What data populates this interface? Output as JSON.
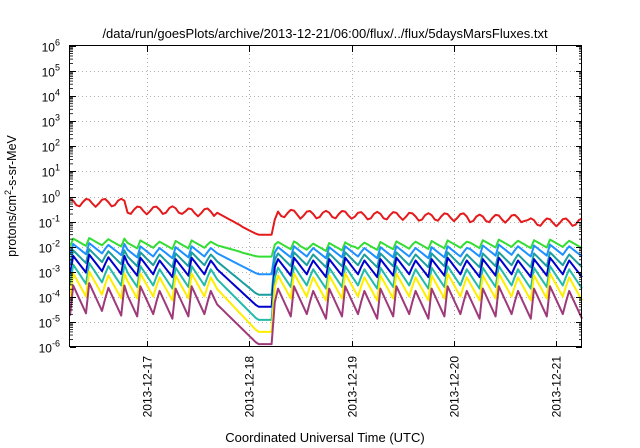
{
  "chart_data": {
    "type": "line",
    "title": "/data/run/goesPlots/archive/2013-12-21/06:00/flux/../flux/5daysMarsFluxes.txt",
    "xlabel": "Coordinated Universal Time (UTC)",
    "ylabel_parts": [
      "protons/cm",
      "2",
      "-s-sr-MeV"
    ],
    "x_ticks": [
      "2013-12-17",
      "2013-12-18",
      "2013-12-19",
      "2013-12-20",
      "2013-12-21"
    ],
    "xlim": [
      "2013-12-16 06:00",
      "2013-12-21 06:00"
    ],
    "y_scale": "log",
    "ylim": [
      1e-06,
      1000000.0
    ],
    "y_tick_exponents": [
      -6,
      -5,
      -4,
      -3,
      -2,
      -1,
      0,
      1,
      2,
      3,
      4,
      5,
      6
    ],
    "y_tick_base": "10",
    "grid": true,
    "legend": "none",
    "series": [
      {
        "color": "#e41a1c",
        "pattern": "decay",
        "level": [
          0.6,
          0.3,
          0.25,
          0.22,
          0.2,
          0.18,
          0.16,
          0.14,
          0.1
        ],
        "dip": {
          "to": 0.03,
          "recover": 0.12
        },
        "amp": 1.7
      },
      {
        "color": "#33dd33",
        "pattern": "sawtooth",
        "level": [
          0.015,
          0.012,
          0.012,
          0.011,
          0.01,
          0.011,
          0.012,
          0.013,
          0.013
        ],
        "dip": {
          "to": 0.004,
          "recover": 0.012
        },
        "amp": 2.2
      },
      {
        "color": "#1e90ff",
        "pattern": "sawtooth",
        "level": [
          0.008,
          0.006,
          0.006,
          0.006,
          0.006,
          0.006,
          0.006,
          0.007,
          0.007
        ],
        "dip": {
          "to": 0.0008,
          "recover": 0.006
        },
        "amp": 3.0
      },
      {
        "color": "#1a9e9e",
        "pattern": "sawtooth",
        "level": [
          0.004,
          0.003,
          0.003,
          0.003,
          0.003,
          0.003,
          0.003,
          0.003,
          0.003
        ],
        "dip": {
          "to": 0.00012,
          "recover": 0.003
        },
        "amp": 4.0
      },
      {
        "color": "#0000cc",
        "pattern": "sawtooth",
        "level": [
          0.002,
          0.0015,
          0.0015,
          0.0015,
          0.0015,
          0.0015,
          0.0015,
          0.0015,
          0.0015
        ],
        "dip": {
          "to": 4e-05,
          "recover": 0.0015
        },
        "amp": 6.0
      },
      {
        "color": "#22bbaa",
        "pattern": "sawtooth",
        "level": [
          0.0008,
          0.0006,
          0.0006,
          0.0006,
          0.0006,
          0.0006,
          0.0006,
          0.0006,
          0.0006
        ],
        "dip": {
          "to": 1.2e-05,
          "recover": 0.0006
        },
        "amp": 8.0
      },
      {
        "color": "#ffee00",
        "pattern": "sawtooth",
        "level": [
          0.0003,
          0.00025,
          0.00025,
          0.00025,
          0.00025,
          0.00025,
          0.00025,
          0.00025,
          0.00025
        ],
        "dip": {
          "to": 4e-06,
          "recover": 0.00025
        },
        "amp": 12.0
      },
      {
        "color": "#9e3a7a",
        "pattern": "sawtooth",
        "level": [
          8e-05,
          6e-05,
          6e-05,
          6e-05,
          6e-05,
          6e-05,
          6e-05,
          6e-05,
          6e-05
        ],
        "dip": {
          "to": 1.3e-06,
          "recover": 6e-05
        },
        "amp": 20.0
      }
    ],
    "dropout_at": "2013-12-18 02:00",
    "recovery_at": "2013-12-18 06:00"
  }
}
